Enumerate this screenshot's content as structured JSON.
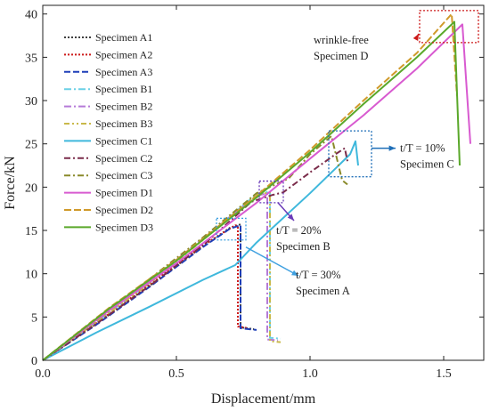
{
  "chart_data": {
    "type": "line",
    "xlabel": "Displacement/mm",
    "ylabel": "Force/kN",
    "xlim": [
      0,
      1.65
    ],
    "ylim": [
      0,
      41
    ],
    "x_ticks": [
      "0.0",
      "0.5",
      "1.0",
      "1.5"
    ],
    "y_ticks": [
      "0",
      "5",
      "10",
      "15",
      "20",
      "25",
      "30",
      "35",
      "40"
    ],
    "grid": false,
    "legend_position": "top-left",
    "series": [
      {
        "name": "Specimen A1",
        "color": "#3f3f3f",
        "dash": "2,2",
        "x": [
          0,
          0.2,
          0.4,
          0.6,
          0.7,
          0.74,
          0.74,
          0.79
        ],
        "y": [
          0,
          4.2,
          8.6,
          13.2,
          15.3,
          15.7,
          3.8,
          3.6
        ]
      },
      {
        "name": "Specimen A2",
        "color": "#cc1a1a",
        "dash": "2,2",
        "x": [
          0,
          0.2,
          0.4,
          0.6,
          0.72,
          0.73,
          0.73,
          0.77
        ],
        "y": [
          0,
          4.3,
          8.8,
          13.3,
          15.6,
          15.5,
          3.9,
          3.7
        ]
      },
      {
        "name": "Specimen A3",
        "color": "#1f3fb8",
        "dash": "7,3",
        "x": [
          0,
          0.2,
          0.4,
          0.6,
          0.7,
          0.74,
          0.74,
          0.8
        ],
        "y": [
          0,
          4.1,
          8.5,
          13.1,
          15.2,
          15.6,
          3.7,
          3.5
        ]
      },
      {
        "name": "Specimen B1",
        "color": "#6ad0e6",
        "dash": "8,3,2,3",
        "x": [
          0,
          0.2,
          0.4,
          0.6,
          0.8,
          0.85,
          0.85,
          0.89
        ],
        "y": [
          0,
          4.4,
          9.0,
          14.0,
          19.2,
          19.5,
          2.6,
          2.5
        ]
      },
      {
        "name": "Specimen B2",
        "color": "#b57ad8",
        "dash": "8,3,2,3",
        "x": [
          0,
          0.2,
          0.4,
          0.6,
          0.8,
          0.84,
          0.84,
          0.88
        ],
        "y": [
          0,
          4.5,
          9.1,
          14.1,
          19.0,
          19.3,
          2.4,
          2.3
        ]
      },
      {
        "name": "Specimen B3",
        "color": "#c9b94a",
        "dash": "6,3,2,3,2,3",
        "x": [
          0,
          0.2,
          0.4,
          0.6,
          0.8,
          0.85,
          0.85,
          0.89
        ],
        "y": [
          0,
          4.4,
          8.9,
          13.9,
          19.1,
          19.4,
          2.2,
          2.1
        ]
      },
      {
        "name": "Specimen C1",
        "color": "#3fb8dc",
        "dash": "",
        "x": [
          0,
          0.2,
          0.4,
          0.6,
          0.72,
          0.8,
          1.0,
          1.15,
          1.17,
          1.18
        ],
        "y": [
          0,
          3.2,
          6.2,
          9.3,
          11.0,
          13.6,
          19.3,
          23.8,
          25.3,
          22.5
        ]
      },
      {
        "name": "Specimen C2",
        "color": "#7a2c4a",
        "dash": "7,3,2,3",
        "x": [
          0,
          0.2,
          0.4,
          0.6,
          0.78,
          0.86,
          0.9,
          1.0,
          1.1,
          1.13,
          1.14
        ],
        "y": [
          0,
          4.2,
          8.6,
          13.3,
          18.3,
          19.1,
          19.4,
          21.7,
          23.9,
          24.5,
          23.0
        ]
      },
      {
        "name": "Specimen C3",
        "color": "#8a8a2a",
        "dash": "7,3,2,3",
        "x": [
          0,
          0.2,
          0.4,
          0.6,
          0.8,
          0.92,
          1.0,
          1.08,
          1.12,
          1.14
        ],
        "y": [
          0,
          4.6,
          9.4,
          14.2,
          19.3,
          21.0,
          23.8,
          25.9,
          20.8,
          20.3
        ]
      },
      {
        "name": "Specimen D1",
        "color": "#d85ad0",
        "dash": "",
        "x": [
          0,
          0.25,
          0.5,
          0.8,
          1.0,
          1.2,
          1.4,
          1.57,
          1.6
        ],
        "y": [
          0,
          5.8,
          11.2,
          18.2,
          23.3,
          28.3,
          33.7,
          38.8,
          25.0
        ]
      },
      {
        "name": "Specimen D2",
        "color": "#d09a2a",
        "dash": "8,3",
        "x": [
          0,
          0.25,
          0.5,
          0.8,
          1.0,
          1.2,
          1.4,
          1.53,
          1.55
        ],
        "y": [
          0,
          6.1,
          11.6,
          19.0,
          24.3,
          30.0,
          35.5,
          40.0,
          30.5
        ]
      },
      {
        "name": "Specimen D3",
        "color": "#5aa82a",
        "dash": "",
        "x": [
          0,
          0.25,
          0.5,
          0.8,
          1.0,
          1.2,
          1.4,
          1.54,
          1.56
        ],
        "y": [
          0,
          6.0,
          11.5,
          18.8,
          24.0,
          29.6,
          35.0,
          39.1,
          22.5
        ]
      }
    ],
    "annotations": [
      {
        "id": "d",
        "line1": "wrinkle-free",
        "line2": "Specimen D",
        "color": "#cc1a1a",
        "box_x": [
          1.41,
          1.63
        ],
        "box_y": [
          36.7,
          40.4
        ]
      },
      {
        "id": "c",
        "line1": "t/T = 10%",
        "line2": "Specimen C",
        "color": "#1f6fb8",
        "box_x": [
          1.07,
          1.23
        ],
        "box_y": [
          21.2,
          26.5
        ]
      },
      {
        "id": "b",
        "line1": "t/T = 20%",
        "line2": "Specimen B",
        "color": "#6a3ab8",
        "box_x": [
          0.81,
          0.9
        ],
        "box_y": [
          18.2,
          20.7
        ]
      },
      {
        "id": "a",
        "line1": "t/T = 30%",
        "line2": "Specimen A",
        "color": "#3fa0e0",
        "box_x": [
          0.65,
          0.76
        ],
        "box_y": [
          13.9,
          16.4
        ]
      }
    ]
  }
}
